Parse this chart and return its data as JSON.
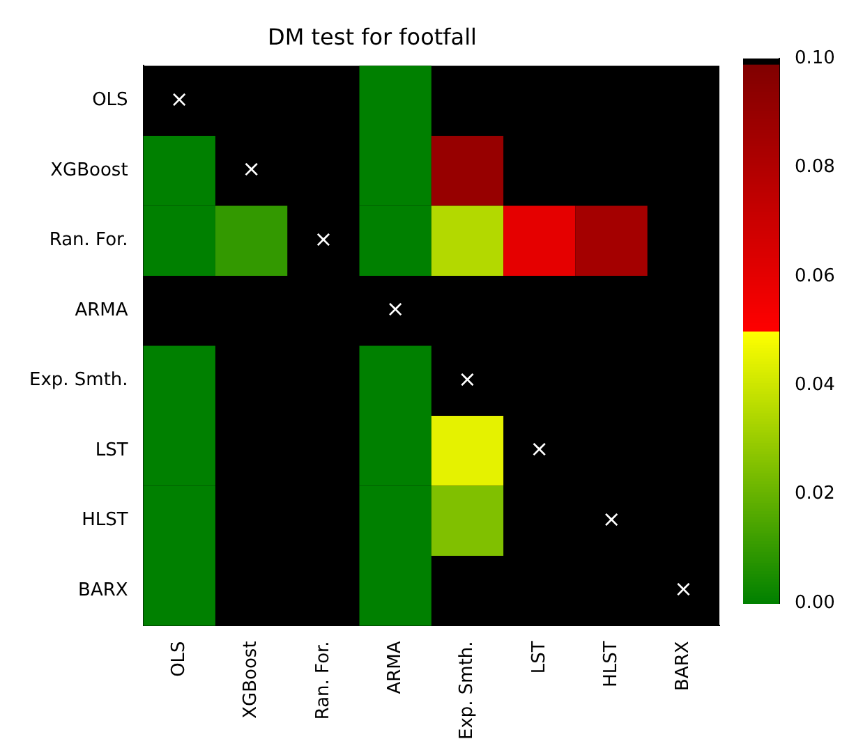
{
  "chart_data": {
    "type": "heatmap",
    "title": "DM test for footfall",
    "categories": [
      "OLS",
      "XGBoost",
      "Ran. For.",
      "ARMA",
      "Exp. Smth.",
      "LST",
      "HLST",
      "BARX"
    ],
    "y_categories": [
      "OLS",
      "XGBoost",
      "Ran. For.",
      "ARMA",
      "Exp. Smth.",
      "LST",
      "HLST",
      "BARX"
    ],
    "cells": [
      [
        null,
        null,
        null,
        0,
        null,
        null,
        null,
        null
      ],
      [
        0,
        null,
        null,
        0,
        0.09,
        null,
        null,
        null
      ],
      [
        0,
        0.01,
        null,
        0,
        0.035,
        0.06,
        0.085,
        null
      ],
      [
        null,
        null,
        null,
        null,
        null,
        null,
        null,
        null
      ],
      [
        0,
        null,
        null,
        0,
        null,
        null,
        null,
        null
      ],
      [
        0,
        null,
        null,
        0,
        0.045,
        null,
        null,
        null
      ],
      [
        0,
        null,
        null,
        0,
        0.025,
        null,
        null,
        null
      ],
      [
        0,
        null,
        null,
        0,
        null,
        null,
        null,
        null
      ]
    ],
    "cell_labels": [
      [
        "×",
        null,
        null,
        null,
        null,
        null,
        null,
        null
      ],
      [
        null,
        "×",
        null,
        null,
        null,
        null,
        null,
        null
      ],
      [
        null,
        null,
        "×",
        null,
        null,
        null,
        null,
        null
      ],
      [
        null,
        null,
        null,
        "×",
        null,
        null,
        null,
        null
      ],
      [
        null,
        null,
        null,
        null,
        "×",
        null,
        null,
        null
      ],
      [
        null,
        null,
        null,
        null,
        null,
        "×",
        null,
        null
      ],
      [
        null,
        null,
        null,
        null,
        null,
        null,
        "×",
        null
      ],
      [
        null,
        null,
        null,
        null,
        null,
        null,
        null,
        "×"
      ]
    ],
    "clim": [
      0,
      0.1
    ],
    "cticks": [
      {
        "value": 0,
        "label": "0.00"
      },
      {
        "value": 0.02,
        "label": "0.02"
      },
      {
        "value": 0.04,
        "label": "0.04"
      },
      {
        "value": 0.06,
        "label": "0.06"
      },
      {
        "value": 0.08,
        "label": "0.08"
      },
      {
        "value": 0.1,
        "label": "0.10"
      }
    ]
  }
}
